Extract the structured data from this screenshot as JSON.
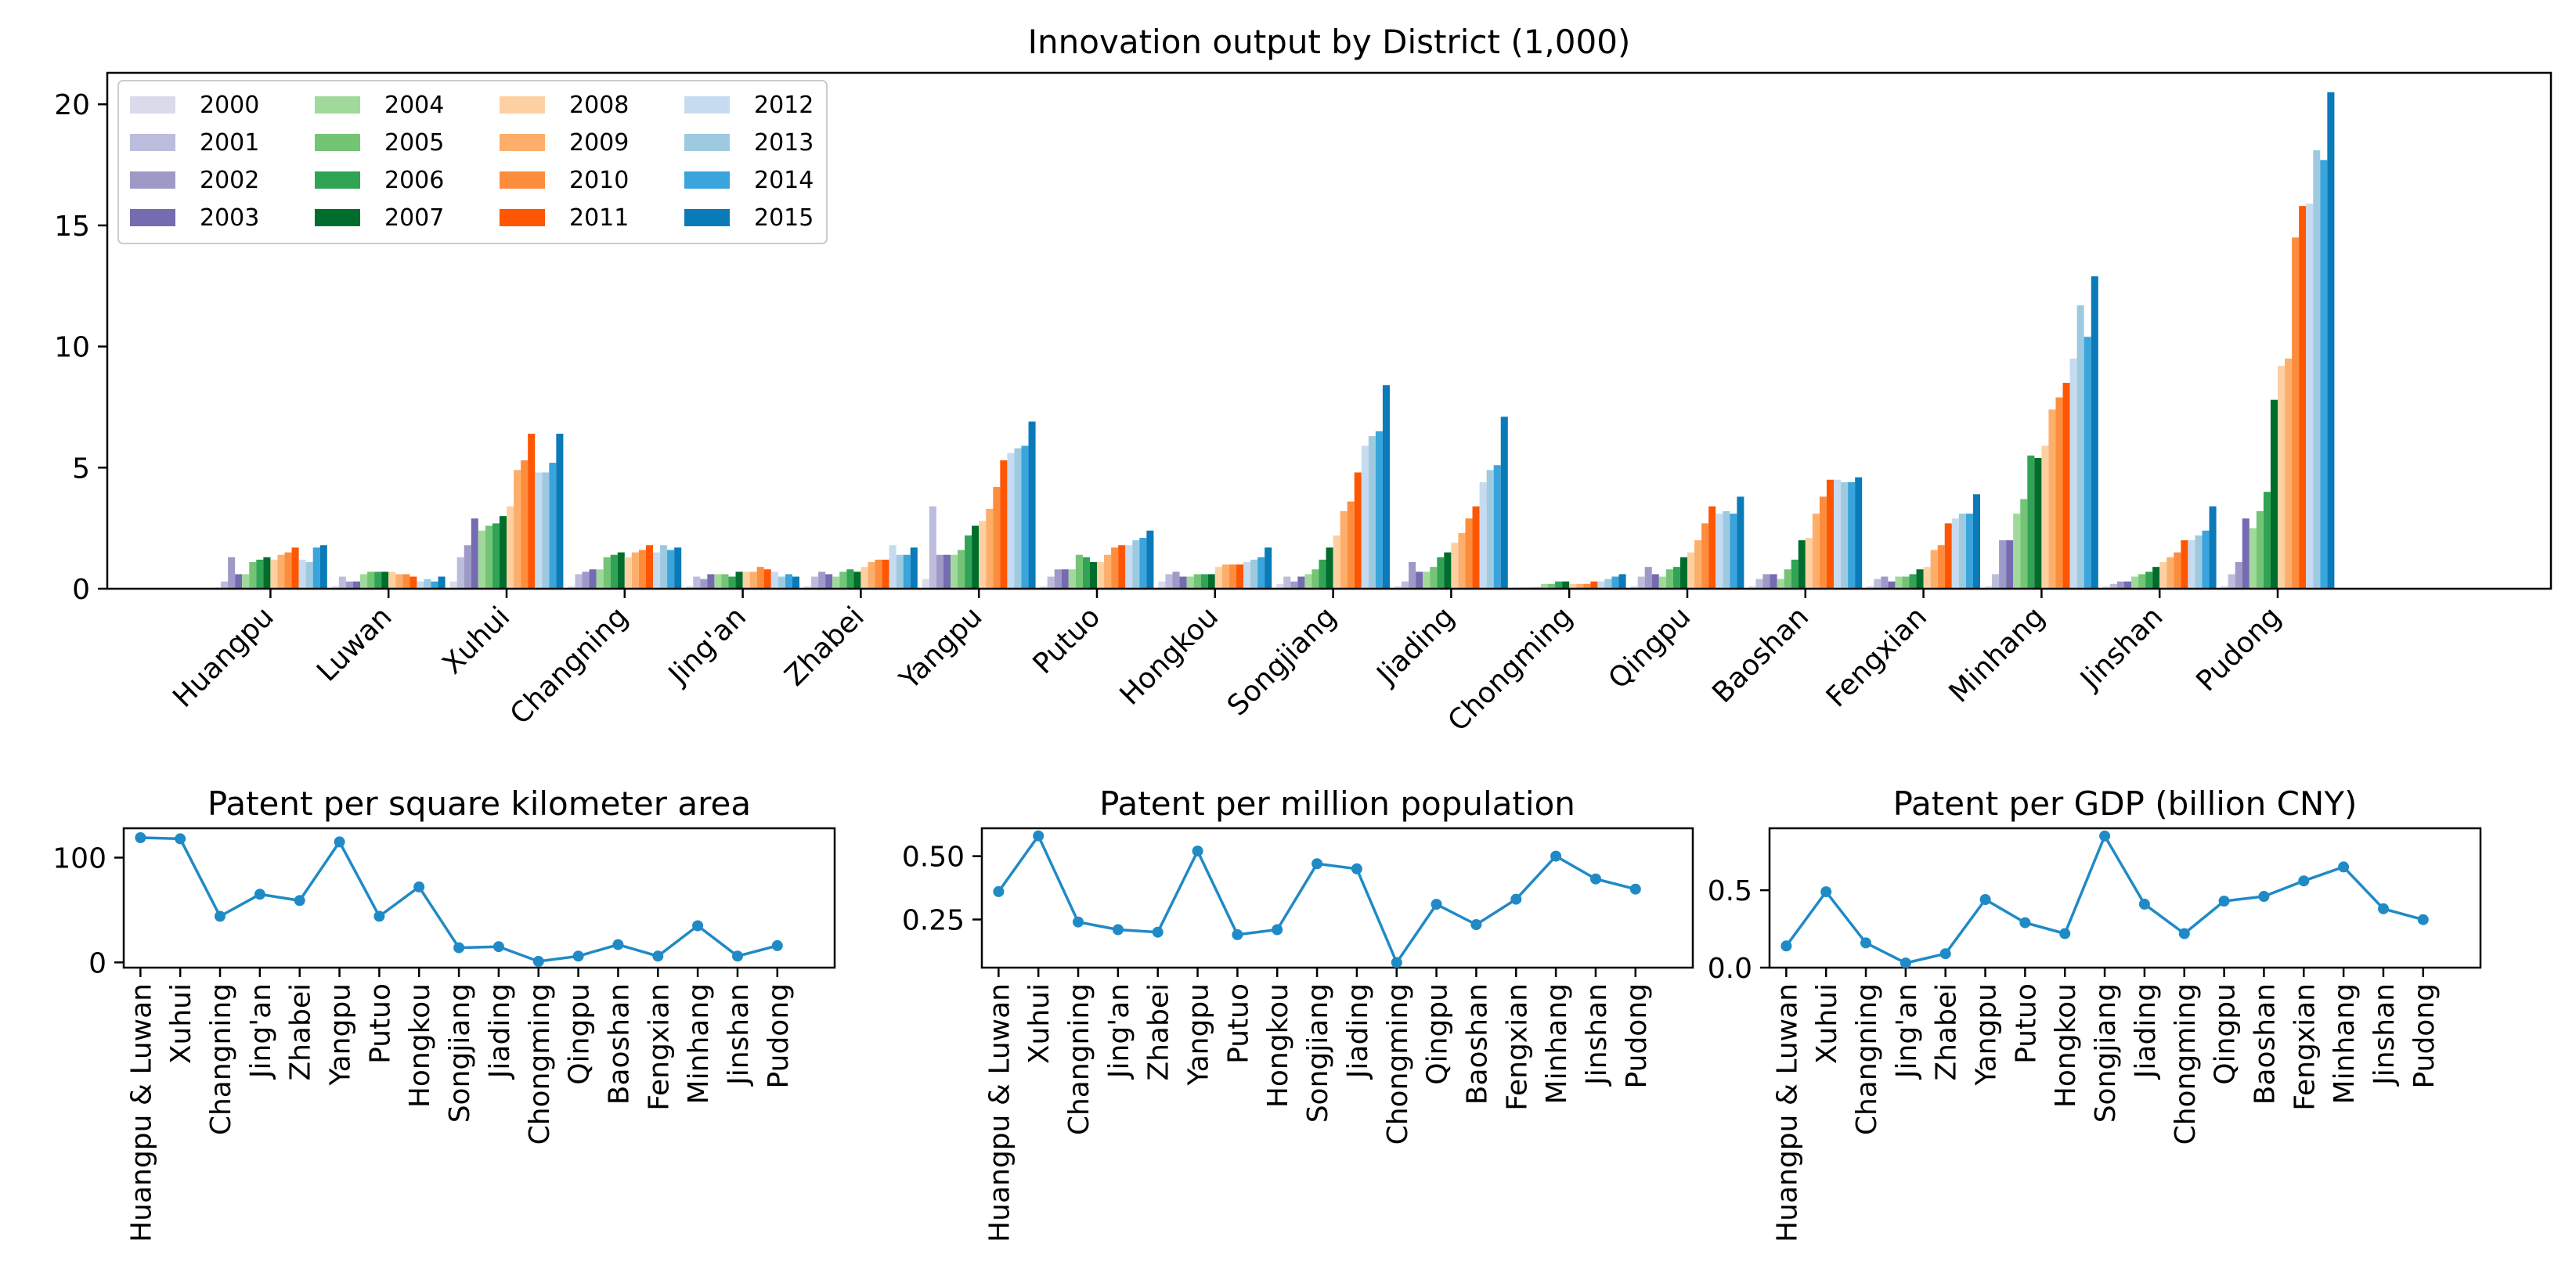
{
  "chart_data": [
    {
      "type": "bar",
      "title": "Innovation output by District (1,000)",
      "xlabel": "",
      "ylabel": "",
      "ylim": [
        0,
        21.3
      ],
      "yticks": [
        0,
        5,
        10,
        15,
        20
      ],
      "legend_position": "top-left",
      "categories": [
        "Huangpu",
        "Luwan",
        "Xuhui",
        "Changning",
        "Jing'an",
        "Zhabei",
        "Yangpu",
        "Putuo",
        "Hongkou",
        "Songjiang",
        "Jiading",
        "Chongming",
        "Qingpu",
        "Baoshan",
        "Fengxian",
        "Minhang",
        "Jinshan",
        "Pudong"
      ],
      "series": [
        {
          "name": "2000",
          "color": "#dadaeb",
          "values": [
            0.05,
            0.1,
            0.3,
            0.1,
            0.1,
            0.1,
            0.4,
            0.1,
            0.3,
            0.2,
            0.1,
            0.05,
            0.1,
            0.1,
            0.1,
            0.1,
            0.1,
            0.1
          ]
        },
        {
          "name": "2001",
          "color": "#bcbddc",
          "values": [
            0.3,
            0.5,
            1.3,
            0.6,
            0.5,
            0.5,
            3.4,
            0.5,
            0.6,
            0.5,
            0.3,
            0.05,
            0.5,
            0.4,
            0.4,
            0.6,
            0.2,
            0.6
          ]
        },
        {
          "name": "2002",
          "color": "#9e9ac8",
          "values": [
            1.3,
            0.3,
            1.8,
            0.7,
            0.4,
            0.7,
            1.4,
            0.8,
            0.7,
            0.3,
            1.1,
            0.05,
            0.9,
            0.6,
            0.5,
            2.0,
            0.3,
            1.1
          ]
        },
        {
          "name": "2003",
          "color": "#756bb1",
          "values": [
            0.6,
            0.3,
            2.9,
            0.8,
            0.6,
            0.6,
            1.4,
            0.8,
            0.5,
            0.5,
            0.7,
            0.05,
            0.6,
            0.6,
            0.3,
            2.0,
            0.3,
            2.9
          ]
        },
        {
          "name": "2004",
          "color": "#a1d99b",
          "values": [
            0.6,
            0.6,
            2.4,
            0.8,
            0.6,
            0.5,
            1.4,
            0.8,
            0.5,
            0.6,
            0.7,
            0.2,
            0.5,
            0.4,
            0.5,
            3.1,
            0.5,
            2.5
          ]
        },
        {
          "name": "2005",
          "color": "#74c476",
          "values": [
            1.1,
            0.7,
            2.6,
            1.3,
            0.6,
            0.7,
            1.6,
            1.4,
            0.6,
            0.8,
            0.9,
            0.2,
            0.8,
            0.8,
            0.5,
            3.7,
            0.6,
            3.2
          ]
        },
        {
          "name": "2006",
          "color": "#31a354",
          "values": [
            1.2,
            0.7,
            2.7,
            1.4,
            0.5,
            0.8,
            2.2,
            1.3,
            0.6,
            1.2,
            1.3,
            0.3,
            0.9,
            1.2,
            0.6,
            5.5,
            0.7,
            4.0
          ]
        },
        {
          "name": "2007",
          "color": "#006d2c",
          "values": [
            1.3,
            0.7,
            3.0,
            1.5,
            0.7,
            0.7,
            2.6,
            1.1,
            0.6,
            1.7,
            1.5,
            0.3,
            1.3,
            2.0,
            0.8,
            5.4,
            0.9,
            7.8
          ]
        },
        {
          "name": "2008",
          "color": "#fdd0a2",
          "values": [
            1.2,
            0.7,
            3.4,
            1.3,
            0.7,
            0.9,
            2.8,
            1.1,
            0.9,
            2.2,
            1.9,
            0.2,
            1.5,
            2.1,
            0.9,
            5.9,
            1.1,
            9.2
          ]
        },
        {
          "name": "2009",
          "color": "#fdae6b",
          "values": [
            1.4,
            0.6,
            4.9,
            1.5,
            0.7,
            1.1,
            3.3,
            1.4,
            1.0,
            3.2,
            2.3,
            0.2,
            2.0,
            3.1,
            1.6,
            7.4,
            1.3,
            9.5
          ]
        },
        {
          "name": "2010",
          "color": "#fd8d3c",
          "values": [
            1.5,
            0.6,
            5.3,
            1.6,
            0.9,
            1.2,
            4.2,
            1.7,
            1.0,
            3.6,
            2.9,
            0.2,
            2.7,
            3.8,
            1.8,
            7.9,
            1.5,
            14.5
          ]
        },
        {
          "name": "2011",
          "color": "#fe5602",
          "values": [
            1.7,
            0.5,
            6.4,
            1.8,
            0.8,
            1.2,
            5.3,
            1.8,
            1.0,
            4.8,
            3.4,
            0.3,
            3.4,
            4.5,
            2.7,
            8.5,
            2.0,
            15.8
          ]
        },
        {
          "name": "2012",
          "color": "#c6dbef",
          "values": [
            1.2,
            0.3,
            4.8,
            1.5,
            0.7,
            1.8,
            5.6,
            1.8,
            1.1,
            5.9,
            4.4,
            0.3,
            3.1,
            4.5,
            2.9,
            9.5,
            2.0,
            15.9
          ]
        },
        {
          "name": "2013",
          "color": "#9ecae1",
          "values": [
            1.1,
            0.4,
            4.8,
            1.8,
            0.5,
            1.4,
            5.8,
            2.0,
            1.2,
            6.3,
            4.9,
            0.4,
            3.2,
            4.4,
            3.1,
            11.7,
            2.2,
            18.1
          ]
        },
        {
          "name": "2014",
          "color": "#3aa4dc",
          "values": [
            1.7,
            0.3,
            5.2,
            1.6,
            0.6,
            1.4,
            5.9,
            2.1,
            1.3,
            6.5,
            5.1,
            0.5,
            3.1,
            4.4,
            3.1,
            10.4,
            2.4,
            17.7
          ]
        },
        {
          "name": "2015",
          "color": "#0a7ab9",
          "values": [
            1.8,
            0.5,
            6.4,
            1.7,
            0.5,
            1.7,
            6.9,
            2.4,
            1.7,
            8.4,
            7.1,
            0.6,
            3.8,
            4.6,
            3.9,
            12.9,
            3.4,
            20.5
          ]
        }
      ]
    },
    {
      "type": "line",
      "title": "Patent per square kilometer area",
      "color": "#1f8ac6",
      "yticks": [
        0,
        100
      ],
      "ylim": [
        -5,
        128
      ],
      "categories": [
        "Huangpu & Luwan",
        "Xuhui",
        "Changning",
        "Jing'an",
        "Zhabei",
        "Yangpu",
        "Putuo",
        "Hongkou",
        "Songjiang",
        "Jiading",
        "Chongming",
        "Qingpu",
        "Baoshan",
        "Fengxian",
        "Minhang",
        "Jinshan",
        "Pudong"
      ],
      "values": [
        119,
        118,
        44,
        65,
        59,
        115,
        44,
        72,
        14,
        15,
        1,
        6,
        17,
        6,
        35,
        6,
        16
      ]
    },
    {
      "type": "line",
      "title": "Patent per million population",
      "color": "#1f8ac6",
      "yticks": [
        0.25,
        0.5
      ],
      "ylim": [
        0.06,
        0.61
      ],
      "categories": [
        "Huangpu & Luwan",
        "Xuhui",
        "Changning",
        "Jing'an",
        "Zhabei",
        "Yangpu",
        "Putuo",
        "Hongkou",
        "Songjiang",
        "Jiading",
        "Chongming",
        "Qingpu",
        "Baoshan",
        "Fengxian",
        "Minhang",
        "Jinshan",
        "Pudong"
      ],
      "values": [
        0.36,
        0.58,
        0.24,
        0.21,
        0.2,
        0.52,
        0.19,
        0.21,
        0.47,
        0.45,
        0.08,
        0.31,
        0.23,
        0.33,
        0.5,
        0.41,
        0.37
      ]
    },
    {
      "type": "line",
      "title": "Patent per GDP (billion CNY)",
      "color": "#1f8ac6",
      "yticks": [
        0.0,
        0.5
      ],
      "ylim": [
        0,
        0.9
      ],
      "categories": [
        "Huangpu & Luwan",
        "Xuhui",
        "Changning",
        "Jing'an",
        "Zhabei",
        "Yangpu",
        "Putuo",
        "Hongkou",
        "Songjiang",
        "Jiading",
        "Chongming",
        "Qingpu",
        "Baoshan",
        "Fengxian",
        "Minhang",
        "Jinshan",
        "Pudong"
      ],
      "values": [
        0.14,
        0.49,
        0.16,
        0.03,
        0.09,
        0.44,
        0.29,
        0.22,
        0.85,
        0.41,
        0.22,
        0.43,
        0.46,
        0.56,
        0.65,
        0.38,
        0.31
      ]
    }
  ]
}
